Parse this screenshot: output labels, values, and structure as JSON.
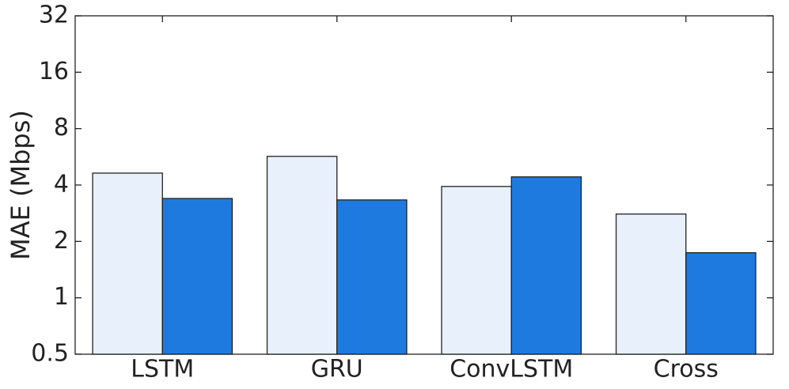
{
  "chart_data": {
    "type": "bar",
    "y_label": "MAE (Mbps)",
    "categories": [
      "LSTM",
      "GRU",
      "ConvLSTM",
      "Cross"
    ],
    "series": [
      {
        "color": "#e8f0fb",
        "values": [
          4.63,
          5.69,
          3.93,
          2.8
        ]
      },
      {
        "color": "#1f7ae0",
        "values": [
          3.39,
          3.33,
          4.42,
          1.74
        ]
      }
    ],
    "ylim": [
      0.5,
      32
    ],
    "yticks": [
      0.5,
      1,
      2,
      4,
      8,
      16,
      32
    ],
    "log_scale": true,
    "log_base": 2,
    "grid": false
  }
}
